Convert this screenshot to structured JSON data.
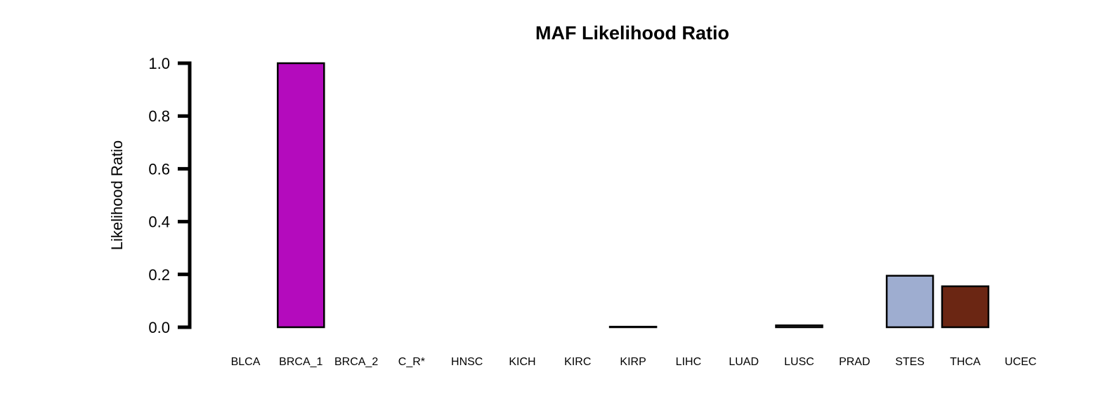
{
  "chart_data": {
    "type": "bar",
    "title": "MAF Likelihood Ratio",
    "xlabel": "",
    "ylabel": "Likelihood Ratio",
    "ylim": [
      0,
      1.0
    ],
    "yticks": [
      "0.0",
      "0.2",
      "0.4",
      "0.6",
      "0.8",
      "1.0"
    ],
    "grid": false,
    "legend": "none",
    "categories": [
      "BLCA",
      "BRCA_1",
      "BRCA_2",
      "C_R*",
      "HNSC",
      "KICH",
      "KIRC",
      "KIRP",
      "LIHC",
      "LUAD",
      "LUSC",
      "PRAD",
      "STES",
      "THCA",
      "UCEC"
    ],
    "values": [
      0.0,
      1.0,
      0.0,
      0.0,
      0.0,
      0.0,
      0.0,
      0.002,
      0.0,
      0.0,
      0.007,
      0.0,
      0.195,
      0.155,
      0.0
    ],
    "colors": [
      "#FFFFFF",
      "#B40BBD",
      "#FFFFFF",
      "#FFFFFF",
      "#FFFFFF",
      "#FFFFFF",
      "#FFFFFF",
      "#FFFFFF",
      "#FFFFFF",
      "#FFFFFF",
      "#FFFFFF",
      "#FFFFFF",
      "#9EADD0",
      "#6B2613",
      "#FFFFFF"
    ]
  }
}
